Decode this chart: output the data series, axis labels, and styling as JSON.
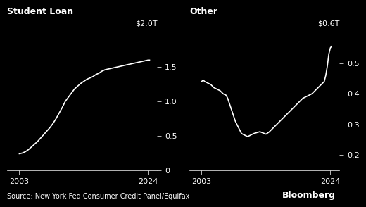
{
  "background_color": "#000000",
  "text_color": "#ffffff",
  "line_color": "#ffffff",
  "title1": "Student Loan",
  "title2": "Other",
  "source_text": "Source: New York Fed Consumer Credit Panel/Equifax",
  "bloomberg_text": "Bloomberg",
  "left_yticks": [
    0,
    0.5,
    1.0,
    1.5
  ],
  "left_ylim": [
    0,
    2.0
  ],
  "left_ytop_label": "$2.0T",
  "right_yticks": [
    0.2,
    0.3,
    0.4,
    0.5
  ],
  "right_ylim": [
    0.15,
    0.6
  ],
  "right_ytop_label": "$0.6T",
  "left_data": {
    "years": [
      2003,
      2003.25,
      2003.5,
      2004,
      2004.5,
      2005,
      2005.5,
      2006,
      2006.5,
      2007,
      2007.5,
      2008,
      2008.5,
      2009,
      2009.5,
      2010,
      2010.5,
      2011,
      2011.5,
      2012,
      2012.5,
      2013,
      2013.5,
      2014,
      2014.5,
      2015,
      2015.5,
      2016,
      2016.5,
      2017,
      2017.5,
      2018,
      2018.5,
      2019,
      2019.5,
      2020,
      2020.5,
      2021,
      2021.5,
      2022,
      2022.5,
      2023,
      2023.5,
      2024,
      2024.25
    ],
    "values": [
      0.24,
      0.245,
      0.25,
      0.27,
      0.3,
      0.34,
      0.38,
      0.42,
      0.47,
      0.52,
      0.57,
      0.62,
      0.68,
      0.75,
      0.83,
      0.91,
      1.0,
      1.06,
      1.12,
      1.18,
      1.22,
      1.26,
      1.29,
      1.32,
      1.34,
      1.36,
      1.39,
      1.41,
      1.44,
      1.46,
      1.47,
      1.48,
      1.49,
      1.5,
      1.51,
      1.52,
      1.53,
      1.54,
      1.55,
      1.56,
      1.57,
      1.58,
      1.59,
      1.6,
      1.6
    ]
  },
  "right_data": {
    "years": [
      2003,
      2003.25,
      2003.5,
      2004,
      2004.5,
      2005,
      2005.5,
      2006,
      2006.5,
      2007,
      2007.25,
      2007.5,
      2007.75,
      2008,
      2008.25,
      2008.5,
      2009,
      2009.5,
      2010,
      2010.5,
      2011,
      2011.5,
      2012,
      2012.5,
      2013,
      2013.25,
      2013.5,
      2014,
      2014.5,
      2015,
      2015.5,
      2016,
      2016.5,
      2017,
      2017.5,
      2018,
      2018.5,
      2019,
      2019.5,
      2020,
      2020.5,
      2021,
      2021.5,
      2022,
      2022.5,
      2023,
      2023.25,
      2023.5,
      2023.75,
      2024,
      2024.2
    ],
    "values": [
      0.44,
      0.445,
      0.44,
      0.435,
      0.43,
      0.42,
      0.415,
      0.41,
      0.4,
      0.395,
      0.385,
      0.37,
      0.355,
      0.34,
      0.325,
      0.31,
      0.29,
      0.27,
      0.265,
      0.26,
      0.265,
      0.27,
      0.273,
      0.276,
      0.272,
      0.27,
      0.268,
      0.275,
      0.285,
      0.295,
      0.305,
      0.315,
      0.325,
      0.335,
      0.345,
      0.355,
      0.365,
      0.375,
      0.385,
      0.39,
      0.395,
      0.4,
      0.41,
      0.42,
      0.43,
      0.44,
      0.46,
      0.49,
      0.53,
      0.55,
      0.555
    ]
  }
}
